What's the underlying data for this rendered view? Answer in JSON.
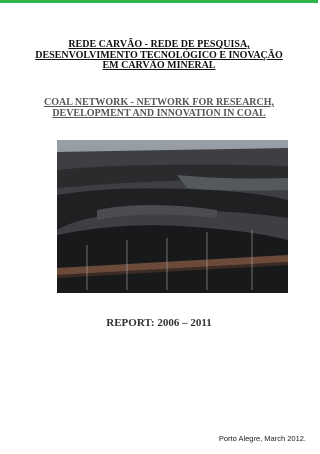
{
  "cover": {
    "title_lines": [
      "REDE CARVÃO - REDE DE PESQUISA,",
      "DESENVOLVIMENTO TECNOLÓGICO E INOVAÇÃO",
      "EM CARVÃO MINERAL"
    ],
    "subtitle_lines": [
      "COAL NETWORK - NETWORK FOR RESEARCH,",
      "DEVELOPMENT AND INNOVATION IN COAL"
    ],
    "report": "REPORT: 2006 – 2011",
    "footer": "Porto Alegre, March 2012."
  }
}
